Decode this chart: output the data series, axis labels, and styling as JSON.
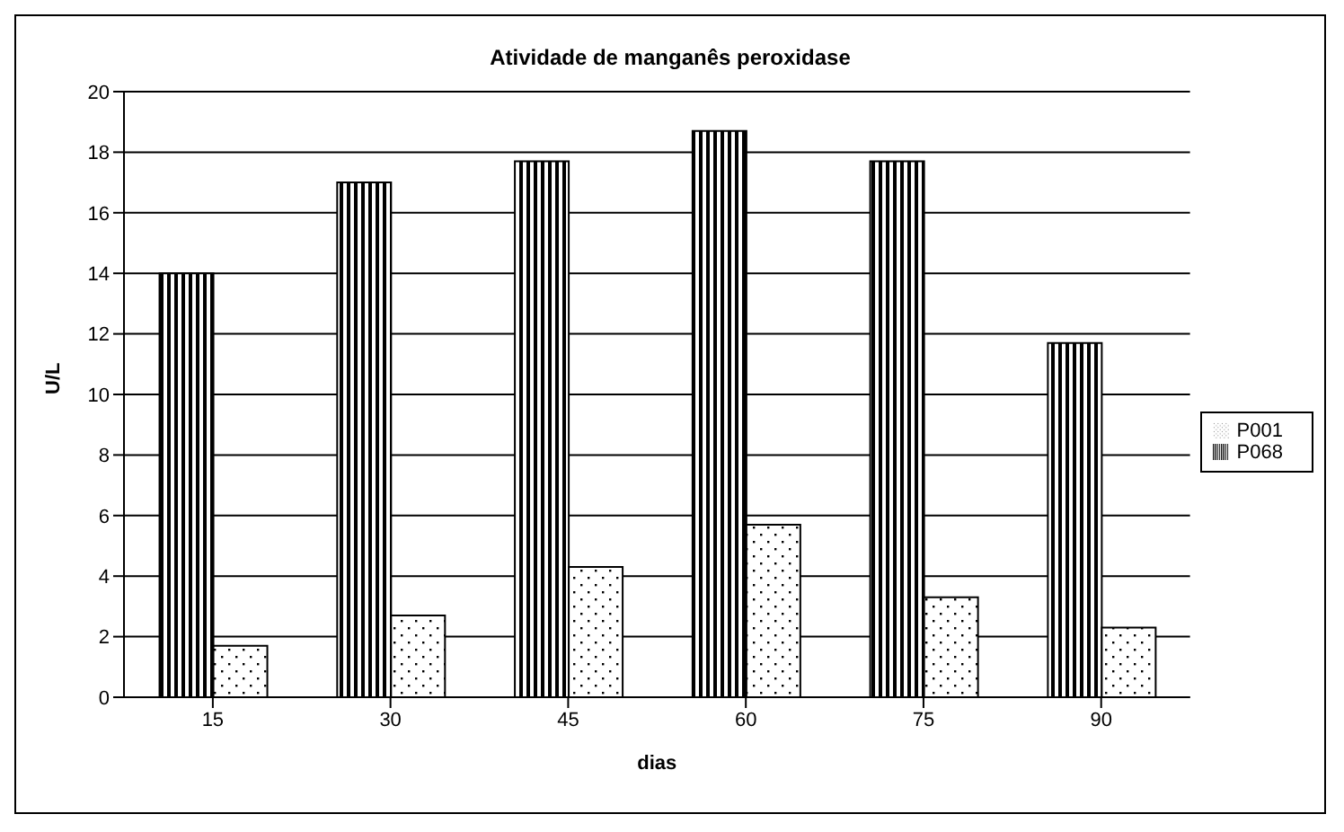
{
  "chart_data": {
    "type": "bar",
    "title": "Atividade de manganês peroxidase",
    "xlabel": "dias",
    "ylabel": "U/L",
    "categories": [
      "15",
      "30",
      "45",
      "60",
      "75",
      "90"
    ],
    "series": [
      {
        "name": "P068",
        "color": "#000000",
        "values": [
          14.0,
          17.0,
          17.7,
          18.7,
          17.7,
          11.7
        ]
      },
      {
        "name": "P001",
        "color": "#000000",
        "values": [
          1.7,
          2.7,
          4.3,
          5.7,
          3.3,
          2.3
        ]
      }
    ],
    "ylim": [
      0,
      20
    ],
    "yticks": [
      0,
      2,
      4,
      6,
      8,
      10,
      12,
      14,
      16,
      18,
      20
    ],
    "grid": "y",
    "legend": "right"
  }
}
